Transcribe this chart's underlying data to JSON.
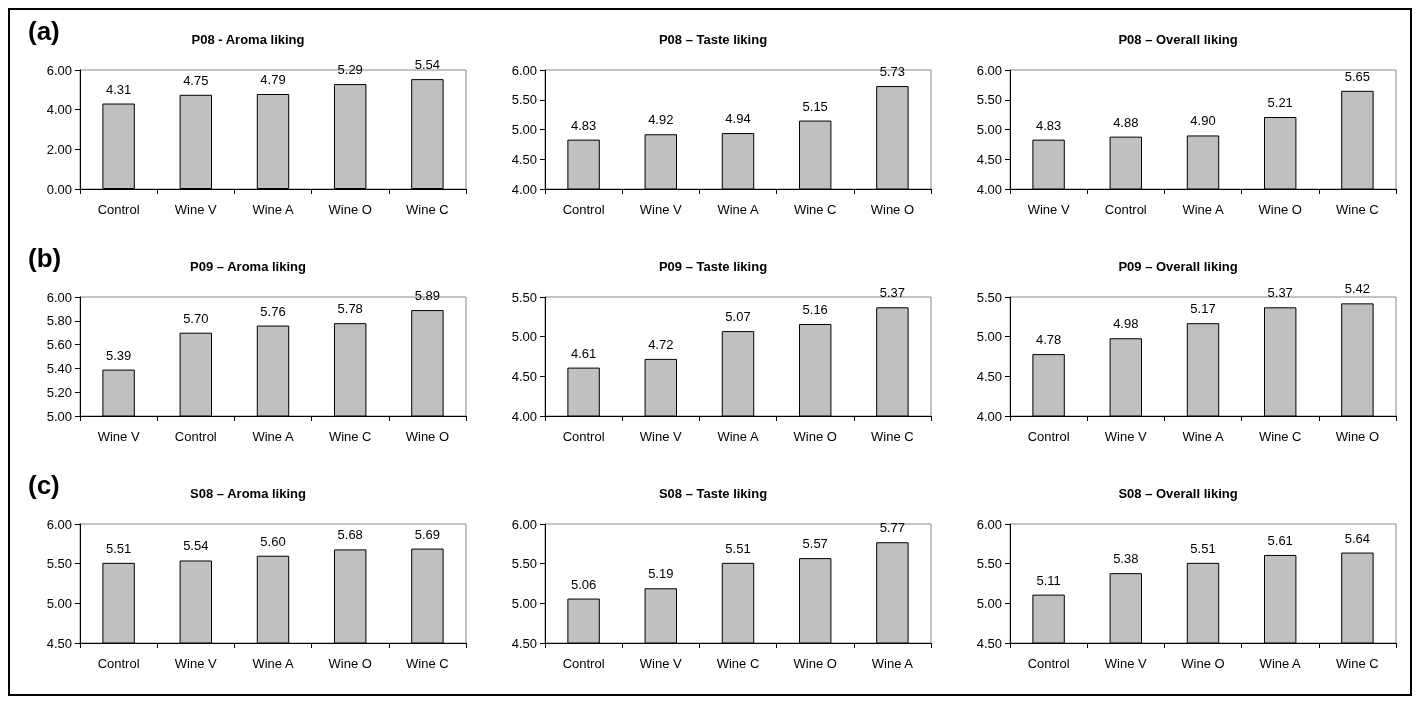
{
  "chart_data": [
    {
      "type": "bar",
      "title": "P08 - Aroma liking",
      "annotations": [
        "(a)"
      ],
      "categories": [
        "Control",
        "Wine V",
        "Wine A",
        "Wine O",
        "Wine C"
      ],
      "values": [
        4.31,
        4.75,
        4.79,
        5.29,
        5.54
      ],
      "value_labels": [
        "4.31",
        "4.75",
        "4.79",
        "5.29",
        "5.54"
      ],
      "color": "#c0c0c0",
      "ylim": [
        0,
        6
      ],
      "yticks": [
        {
          "value": 0,
          "label": "0.00"
        },
        {
          "value": 2,
          "label": "2.00"
        },
        {
          "value": 4,
          "label": "4.00"
        },
        {
          "value": 6,
          "label": "6.00"
        }
      ]
    },
    {
      "type": "bar",
      "title": "P08 – Taste liking",
      "categories": [
        "Control",
        "Wine V",
        "Wine A",
        "Wine C",
        "Wine O"
      ],
      "values": [
        4.83,
        4.92,
        4.94,
        5.15,
        5.73
      ],
      "value_labels": [
        "4.83",
        "4.92",
        "4.94",
        "5.15",
        "5.73"
      ],
      "color": "#c0c0c0",
      "ylim": [
        4,
        6
      ],
      "yticks": [
        {
          "value": 4,
          "label": "4.00"
        },
        {
          "value": 4.5,
          "label": "4.50"
        },
        {
          "value": 5,
          "label": "5.00"
        },
        {
          "value": 5.5,
          "label": "5.50"
        },
        {
          "value": 6,
          "label": "6.00"
        }
      ]
    },
    {
      "type": "bar",
      "title": "P08 – Overall liking",
      "categories": [
        "Wine V",
        "Control",
        "Wine A",
        "Wine O",
        "Wine C"
      ],
      "values": [
        4.83,
        4.88,
        4.9,
        5.21,
        5.65
      ],
      "value_labels": [
        "4.83",
        "4.88",
        "4.90",
        "5.21",
        "5.65"
      ],
      "color": "#c0c0c0",
      "ylim": [
        4,
        6
      ],
      "yticks": [
        {
          "value": 4,
          "label": "4.00"
        },
        {
          "value": 4.5,
          "label": "4.50"
        },
        {
          "value": 5,
          "label": "5.00"
        },
        {
          "value": 5.5,
          "label": "5.50"
        },
        {
          "value": 6,
          "label": "6.00"
        }
      ]
    },
    {
      "type": "bar",
      "title": "P09 – Aroma liking",
      "annotations": [
        "(b)"
      ],
      "categories": [
        "Wine V",
        "Control",
        "Wine A",
        "Wine C",
        "Wine O"
      ],
      "values": [
        5.39,
        5.7,
        5.76,
        5.78,
        5.89
      ],
      "value_labels": [
        "5.39",
        "5.70",
        "5.76",
        "5.78",
        "5.89"
      ],
      "color": "#c0c0c0",
      "ylim": [
        5,
        6
      ],
      "yticks": [
        {
          "value": 5,
          "label": "5.00"
        },
        {
          "value": 5.2,
          "label": "5.20"
        },
        {
          "value": 5.4,
          "label": "5.40"
        },
        {
          "value": 5.6,
          "label": "5.60"
        },
        {
          "value": 5.8,
          "label": "5.80"
        },
        {
          "value": 6,
          "label": "6.00"
        }
      ]
    },
    {
      "type": "bar",
      "title": "P09 – Taste liking",
      "categories": [
        "Control",
        "Wine V",
        "Wine A",
        "Wine O",
        "Wine C"
      ],
      "values": [
        4.61,
        4.72,
        5.07,
        5.16,
        5.37
      ],
      "value_labels": [
        "4.61",
        "4.72",
        "5.07",
        "5.16",
        "5.37"
      ],
      "color": "#c0c0c0",
      "ylim": [
        4,
        5.5
      ],
      "yticks": [
        {
          "value": 4,
          "label": "4.00"
        },
        {
          "value": 4.5,
          "label": "4.50"
        },
        {
          "value": 5,
          "label": "5.00"
        },
        {
          "value": 5.5,
          "label": "5.50"
        }
      ]
    },
    {
      "type": "bar",
      "title": "P09 – Overall liking",
      "categories": [
        "Control",
        "Wine V",
        "Wine A",
        "Wine C",
        "Wine O"
      ],
      "values": [
        4.78,
        4.98,
        5.17,
        5.37,
        5.42
      ],
      "value_labels": [
        "4.78",
        "4.98",
        "5.17",
        "5.37",
        "5.42"
      ],
      "color": "#c0c0c0",
      "ylim": [
        4,
        5.5
      ],
      "yticks": [
        {
          "value": 4,
          "label": "4.00"
        },
        {
          "value": 4.5,
          "label": "4.50"
        },
        {
          "value": 5,
          "label": "5.00"
        },
        {
          "value": 5.5,
          "label": "5.50"
        }
      ]
    },
    {
      "type": "bar",
      "title": "S08 – Aroma liking",
      "annotations": [
        "(c)"
      ],
      "categories": [
        "Control",
        "Wine V",
        "Wine A",
        "Wine O",
        "Wine C"
      ],
      "values": [
        5.51,
        5.54,
        5.6,
        5.68,
        5.69
      ],
      "value_labels": [
        "5.51",
        "5.54",
        "5.60",
        "5.68",
        "5.69"
      ],
      "color": "#c0c0c0",
      "ylim": [
        4.5,
        6
      ],
      "yticks": [
        {
          "value": 4.5,
          "label": "4.50"
        },
        {
          "value": 5,
          "label": "5.00"
        },
        {
          "value": 5.5,
          "label": "5.50"
        },
        {
          "value": 6,
          "label": "6.00"
        }
      ]
    },
    {
      "type": "bar",
      "title": "S08 – Taste liking",
      "categories": [
        "Control",
        "Wine V",
        "Wine C",
        "Wine O",
        "Wine A"
      ],
      "values": [
        5.06,
        5.19,
        5.51,
        5.57,
        5.77
      ],
      "value_labels": [
        "5.06",
        "5.19",
        "5.51",
        "5.57",
        "5.77"
      ],
      "color": "#c0c0c0",
      "ylim": [
        4.5,
        6
      ],
      "yticks": [
        {
          "value": 4.5,
          "label": "4.50"
        },
        {
          "value": 5,
          "label": "5.00"
        },
        {
          "value": 5.5,
          "label": "5.50"
        },
        {
          "value": 6,
          "label": "6.00"
        }
      ]
    },
    {
      "type": "bar",
      "title": "S08 – Overall liking",
      "categories": [
        "Control",
        "Wine V",
        "Wine O",
        "Wine A",
        "Wine C"
      ],
      "values": [
        5.11,
        5.38,
        5.51,
        5.61,
        5.64
      ],
      "value_labels": [
        "5.11",
        "5.38",
        "5.51",
        "5.61",
        "5.64"
      ],
      "color": "#c0c0c0",
      "ylim": [
        4.5,
        6
      ],
      "yticks": [
        {
          "value": 4.5,
          "label": "4.50"
        },
        {
          "value": 5,
          "label": "5.00"
        },
        {
          "value": 5.5,
          "label": "5.50"
        },
        {
          "value": 6,
          "label": "6.00"
        }
      ]
    }
  ]
}
